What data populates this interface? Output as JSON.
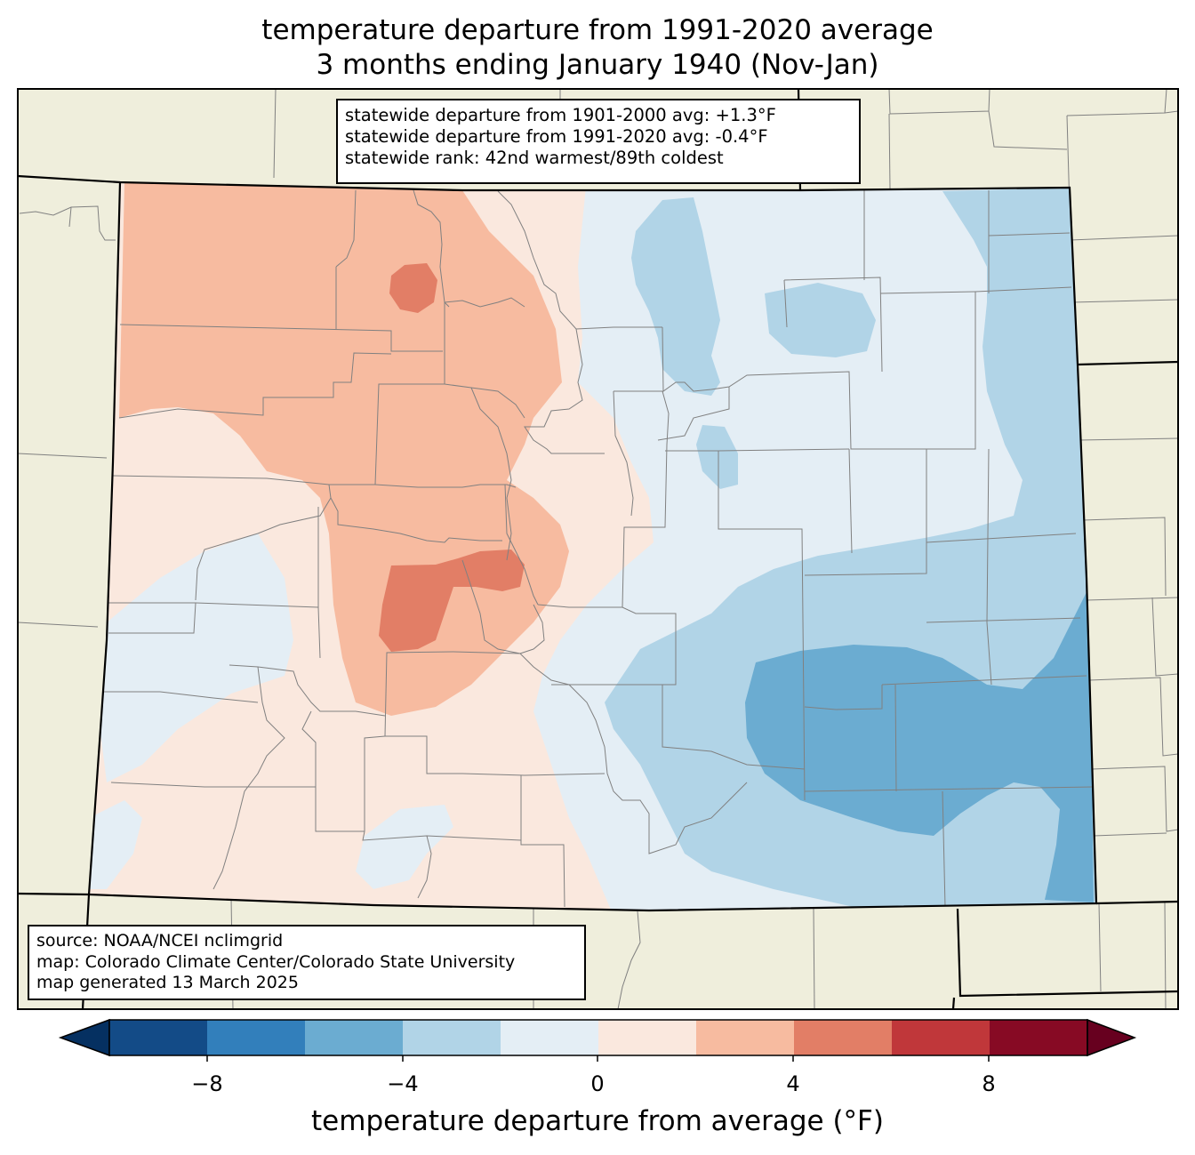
{
  "title": {
    "line1": "temperature departure from 1991-2020 average",
    "line2": "3 months ending January 1940 (Nov-Jan)"
  },
  "stats": {
    "line1": "statewide departure from 1901-2000 avg: +1.3°F",
    "line2": "statewide departure from 1991-2020 avg: -0.4°F",
    "line3": "statewide rank: 42nd warmest/89th coldest"
  },
  "source": {
    "line1": "source: NOAA/NCEI nclimgrid",
    "line2": "map: Colorado Climate Center/Colorado State University",
    "line3": "map generated 13 March 2025"
  },
  "colorbar": {
    "label": "temperature departure from average (°F)",
    "ticks": [
      "−8",
      "−4",
      "0",
      "4",
      "8"
    ],
    "bins": [
      {
        "range": "-10 to -8",
        "color": "#134b87"
      },
      {
        "range": "-8 to -6",
        "color": "#327fbb"
      },
      {
        "range": "-6 to -4",
        "color": "#6bacd1"
      },
      {
        "range": "-4 to -2",
        "color": "#b1d4e7"
      },
      {
        "range": "-2 to 0",
        "color": "#e4eef5"
      },
      {
        "range": "0 to 2",
        "color": "#fae8de"
      },
      {
        "range": "2 to 4",
        "color": "#f7bba0"
      },
      {
        "range": "4 to 6",
        "color": "#e27e66"
      },
      {
        "range": "6 to 8",
        "color": "#c0373a"
      },
      {
        "range": "8 to 10",
        "color": "#870a24"
      }
    ],
    "under_color": "#053061",
    "over_color": "#67001f"
  },
  "map_colors": {
    "land": "#efeedc",
    "county_lines": "#808080",
    "state_lines": "#000000"
  }
}
